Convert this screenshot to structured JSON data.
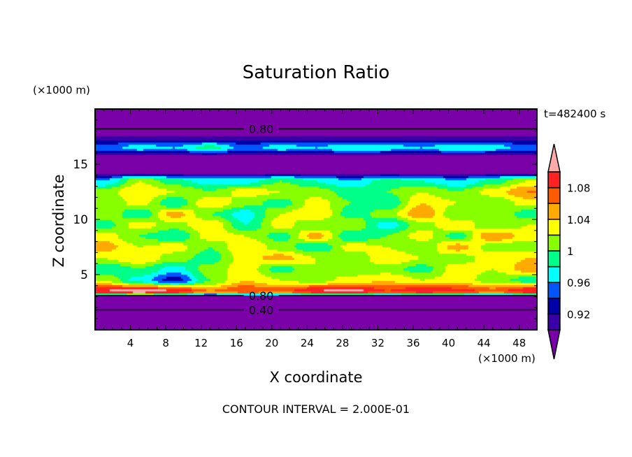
{
  "chart_data": {
    "type": "heatmap",
    "title": "Saturation Ratio",
    "xlabel": "X coordinate",
    "ylabel": "Z coordinate",
    "x_unit": "(×1000 m)",
    "y_unit": "(×1000 m)",
    "time_label": "t=482400 s",
    "footer": "CONTOUR INTERVAL = 2.000E-01",
    "xlim": [
      0,
      50
    ],
    "ylim": [
      0,
      20
    ],
    "x_ticks": [
      4,
      8,
      12,
      16,
      20,
      24,
      28,
      32,
      36,
      40,
      44,
      48
    ],
    "y_ticks": [
      5,
      10,
      15
    ],
    "grid_x": [
      1,
      5,
      9,
      13,
      17,
      21,
      25,
      29,
      33,
      37,
      41,
      45,
      49
    ],
    "grid_z": [
      0.5,
      1.5,
      2.5,
      3.5,
      4.5,
      5.5,
      6.5,
      7.5,
      8.5,
      9.5,
      10.5,
      11.5,
      12.5,
      13.5,
      14.5,
      15.5,
      16.5,
      17.5,
      18.5,
      19.5
    ],
    "values": [
      [
        0.35,
        0.35,
        0.35,
        0.35,
        0.35,
        0.35,
        0.35,
        0.35,
        0.35,
        0.35,
        0.35,
        0.35,
        0.35
      ],
      [
        0.45,
        0.45,
        0.45,
        0.45,
        0.45,
        0.45,
        0.45,
        0.45,
        0.45,
        0.45,
        0.45,
        0.45,
        0.45
      ],
      [
        0.6,
        0.6,
        0.6,
        0.6,
        0.6,
        0.6,
        0.6,
        0.6,
        0.6,
        0.6,
        0.6,
        0.6,
        0.6
      ],
      [
        1.1,
        1.12,
        1.1,
        1.06,
        1.08,
        1.07,
        1.1,
        1.11,
        1.08,
        1.1,
        1.09,
        1.07,
        1.1
      ],
      [
        1.02,
        0.97,
        0.93,
        1.0,
        1.04,
        1.02,
        1.01,
        1.03,
        1.04,
        1.02,
        1.03,
        1.01,
        0.99
      ],
      [
        0.98,
        1.0,
        0.97,
        1.01,
        1.03,
        0.99,
        1.02,
        1.0,
        1.01,
        0.99,
        1.03,
        1.02,
        1.05
      ],
      [
        1.02,
        1.04,
        1.01,
        0.99,
        1.03,
        1.05,
        1.02,
        1.0,
        1.04,
        1.02,
        1.01,
        1.03,
        1.04
      ],
      [
        1.05,
        1.02,
        1.03,
        1.0,
        1.04,
        1.01,
        0.98,
        1.03,
        1.02,
        1.0,
        1.05,
        1.01,
        1.0
      ],
      [
        1.03,
        1.0,
        0.98,
        1.03,
        1.02,
        0.99,
        1.05,
        0.98,
        1.0,
        1.03,
        0.99,
        1.06,
        1.03
      ],
      [
        0.99,
        1.03,
        1.01,
        1.04,
        0.98,
        1.03,
        1.0,
        1.02,
        0.97,
        1.01,
        1.04,
        1.0,
        1.02
      ],
      [
        1.02,
        0.98,
        1.05,
        1.0,
        0.97,
        1.02,
        1.04,
        0.99,
        1.01,
        1.06,
        1.0,
        1.02,
        0.99
      ],
      [
        1.0,
        1.03,
        0.98,
        1.04,
        1.01,
        0.99,
        1.03,
        1.0,
        0.98,
        1.04,
        1.02,
        1.0,
        1.03
      ],
      [
        1.01,
        1.04,
        1.02,
        1.0,
        1.03,
        1.02,
        1.01,
        0.99,
        1.0,
        1.02,
        1.0,
        1.03,
        1.06
      ],
      [
        0.96,
        1.02,
        0.99,
        0.97,
        0.97,
        1.0,
        0.98,
        0.96,
        0.99,
        0.98,
        0.96,
        0.99,
        1.02
      ],
      [
        0.86,
        0.86,
        0.86,
        0.86,
        0.86,
        0.86,
        0.86,
        0.86,
        0.86,
        0.86,
        0.86,
        0.86,
        0.86
      ],
      [
        0.88,
        0.88,
        0.88,
        0.88,
        0.88,
        0.88,
        0.88,
        0.88,
        0.88,
        0.88,
        0.88,
        0.88,
        0.88
      ],
      [
        0.95,
        0.97,
        0.96,
        0.99,
        0.95,
        0.97,
        0.96,
        0.98,
        0.97,
        0.96,
        0.98,
        0.97,
        0.95
      ],
      [
        0.9,
        0.9,
        0.9,
        0.9,
        0.9,
        0.9,
        0.9,
        0.9,
        0.9,
        0.9,
        0.9,
        0.9,
        0.9
      ],
      [
        0.82,
        0.82,
        0.82,
        0.82,
        0.82,
        0.82,
        0.82,
        0.82,
        0.82,
        0.82,
        0.82,
        0.82,
        0.82
      ],
      [
        0.75,
        0.75,
        0.75,
        0.75,
        0.75,
        0.75,
        0.75,
        0.75,
        0.75,
        0.75,
        0.75,
        0.75,
        0.75
      ]
    ],
    "contour_labels": [
      {
        "text": "0.80",
        "x": 17.3,
        "z": 18.2
      },
      {
        "text": "0.80",
        "x": 17.3,
        "z": 3.1
      },
      {
        "text": "0.40",
        "x": 17.3,
        "z": 1.8
      }
    ],
    "colorbar": {
      "levels": [
        0.9,
        0.92,
        0.94,
        0.96,
        0.98,
        1.0,
        1.02,
        1.04,
        1.06,
        1.08,
        1.1
      ],
      "colors": [
        "#7a00a8",
        "#3a00a8",
        "#0000a8",
        "#0055ff",
        "#00ffff",
        "#00ff88",
        "#88ff00",
        "#ffff00",
        "#ffaa00",
        "#ff5a00",
        "#ff2222",
        "#ffaaaa"
      ],
      "tick_labels": [
        {
          "text": "1.08",
          "value": 1.08
        },
        {
          "text": "1.04",
          "value": 1.04
        },
        {
          "text": "1",
          "value": 1.0
        },
        {
          "text": "0.96",
          "value": 0.96
        },
        {
          "text": "0.92",
          "value": 0.92
        }
      ]
    }
  }
}
